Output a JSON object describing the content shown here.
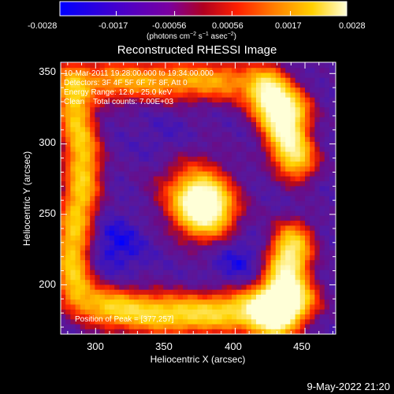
{
  "colorbar": {
    "tick_labels": [
      "-0.0028",
      "-0.0017",
      "-0.00056",
      "0.00056",
      "0.0017",
      "0.0028"
    ],
    "tick_values": [
      -0.0028,
      -0.0017,
      -0.00056,
      0.00056,
      0.0017,
      0.0028
    ],
    "range": [
      -0.0028,
      0.0028
    ],
    "units_prefix": "(photons cm",
    "units_exp1": "−2",
    "units_mid": " s",
    "units_exp2": "−1",
    "units_mid2": " asec",
    "units_exp3": "−2",
    "units_suffix": ")",
    "colors": [
      "#0000ff",
      "#4b00c8",
      "#7a00a0",
      "#b00020",
      "#ff2000",
      "#ff8000",
      "#ffd000",
      "#ffffd8"
    ]
  },
  "chart_data": {
    "type": "heatmap",
    "title": "Reconstructed RHESSI Image",
    "xlabel": "Heliocentric X (arcsec)",
    "ylabel": "Heliocentric Y (arcsec)",
    "xlim": [
      275,
      472
    ],
    "ylim": [
      165,
      358
    ],
    "x_ticks": [
      300,
      350,
      400,
      450
    ],
    "y_ticks": [
      200,
      250,
      300,
      350
    ],
    "x_tick_labels": [
      "300",
      "350",
      "400",
      "450"
    ],
    "y_tick_labels": [
      "200",
      "250",
      "300",
      "350"
    ],
    "peak": [
      377,
      257
    ],
    "annotations": [
      "10-Mar-2011 19:28:00.000 to 19:34:00.000",
      "Detectors: 3F 4F 5F 6F 7F 8F, Att 0",
      "Energy Range: 12.0 - 25.0 keV",
      "Clean    Total counts: 7.00E+03",
      "Position of Peak = [377,257]"
    ],
    "colormap": "red-temperature diverging (blue → purple → red → yellow → white)"
  },
  "timestamp": "9-May-2022 21:20"
}
